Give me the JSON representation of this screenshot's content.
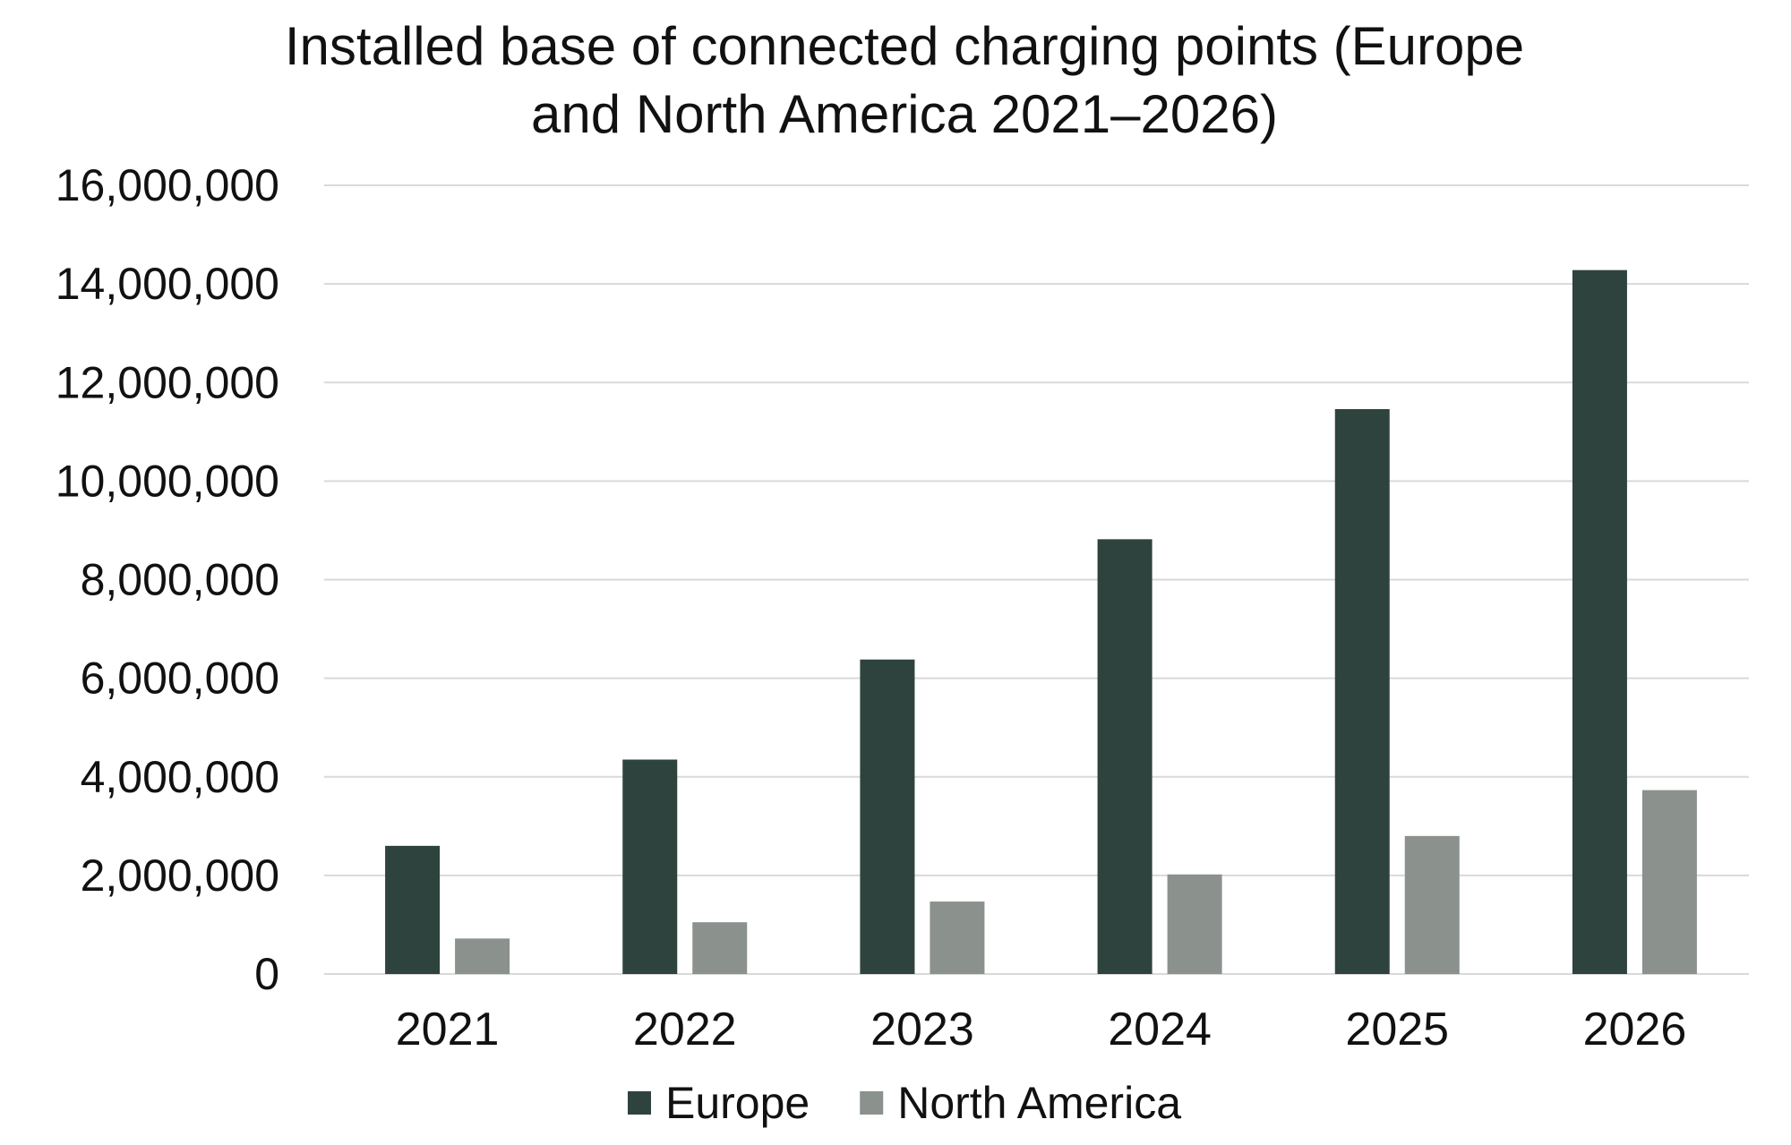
{
  "chart_data": {
    "type": "bar",
    "title_lines": [
      "Installed base of connected charging points (Europe",
      "and North America 2021–2026)"
    ],
    "categories": [
      "2021",
      "2022",
      "2023",
      "2024",
      "2025",
      "2026"
    ],
    "series": [
      {
        "name": "Europe",
        "color": "#2e433d",
        "values": [
          2600000,
          4350000,
          6380000,
          8820000,
          11460000,
          14280000
        ]
      },
      {
        "name": "North America",
        "color": "#8b918d",
        "values": [
          720000,
          1050000,
          1470000,
          2020000,
          2800000,
          3730000
        ]
      }
    ],
    "ylim": [
      0,
      16000000
    ],
    "yticks": [
      0,
      2000000,
      4000000,
      6000000,
      8000000,
      10000000,
      12000000,
      14000000,
      16000000
    ],
    "ytick_labels": [
      "0",
      "2,000,000",
      "4,000,000",
      "6,000,000",
      "8,000,000",
      "10,000,000",
      "12,000,000",
      "14,000,000",
      "16,000,000"
    ],
    "grid": true,
    "gridline_color": "#d9d9d9",
    "legend_position": "bottom"
  }
}
